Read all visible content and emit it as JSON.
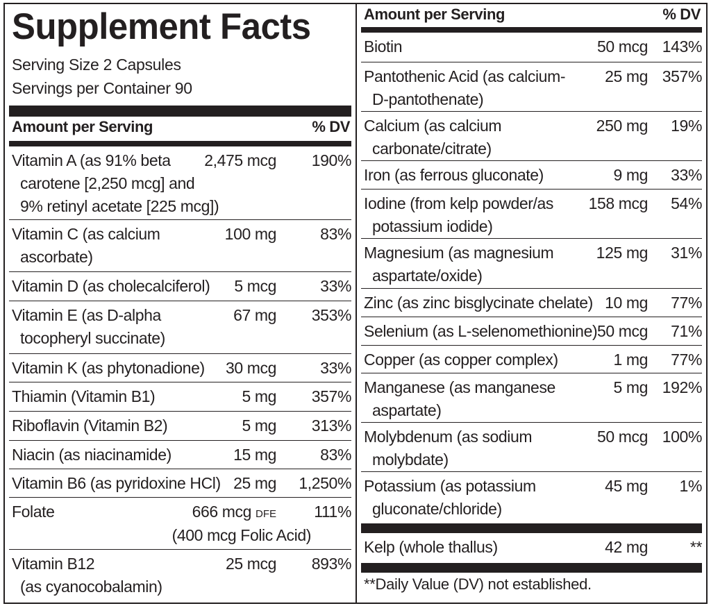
{
  "title": "Supplement Facts",
  "serving_size": "Serving Size 2 Capsules",
  "servings_per_container": "Servings per Container 90",
  "header_amount": "Amount per Serving",
  "header_dv": "% DV",
  "left_rows": [
    {
      "name_lines": [
        "Vitamin A (as 91% beta",
        "carotene [2,250 mcg] and",
        "9% retinyl acetate [225 mcg])"
      ],
      "amount": "2,475 mcg",
      "dv": "190%"
    },
    {
      "name_lines": [
        "Vitamin C (as calcium",
        "ascorbate)"
      ],
      "amount": "100 mg",
      "dv": "83%"
    },
    {
      "name_lines": [
        "Vitamin D (as cholecalciferol)"
      ],
      "amount": "5 mcg",
      "dv": "33%"
    },
    {
      "name_lines": [
        "Vitamin E (as D-alpha",
        "tocopheryl succinate)"
      ],
      "amount": "67 mg",
      "dv": "353%"
    },
    {
      "name_lines": [
        "Vitamin K (as phytonadione)"
      ],
      "amount": "30 mcg",
      "dv": "33%"
    },
    {
      "name_lines": [
        "Thiamin (Vitamin B1)"
      ],
      "amount": "5 mg",
      "dv": "357%"
    },
    {
      "name_lines": [
        "Riboflavin (Vitamin B2)"
      ],
      "amount": "5 mg",
      "dv": "313%"
    },
    {
      "name_lines": [
        "Niacin (as niacinamide)"
      ],
      "amount": "15 mg",
      "dv": "83%"
    },
    {
      "name_lines": [
        "Vitamin B6 (as pyridoxine HCl)"
      ],
      "amount": "25 mg",
      "dv": "1,250%"
    },
    {
      "name_lines": [
        "Folate"
      ],
      "amount": "666 mcg",
      "amount_suffix": "DFE",
      "dv": "111%",
      "sub_line": "(400 mcg Folic Acid)"
    },
    {
      "name_lines": [
        "Vitamin B12",
        "(as cyanocobalamin)"
      ],
      "amount": "25 mcg",
      "dv": "893%"
    }
  ],
  "right_rows": [
    {
      "name_lines": [
        "Biotin"
      ],
      "amount": "50 mcg",
      "dv": "143%"
    },
    {
      "name_lines": [
        "Pantothenic Acid (as calcium-",
        "D-pantothenate)"
      ],
      "amount": "25 mg",
      "dv": "357%"
    },
    {
      "name_lines": [
        "Calcium (as calcium",
        "carbonate/citrate)"
      ],
      "amount": "250 mg",
      "dv": "19%"
    },
    {
      "name_lines": [
        "Iron (as ferrous gluconate)"
      ],
      "amount": "9 mg",
      "dv": "33%"
    },
    {
      "name_lines": [
        "Iodine (from kelp powder/as",
        "potassium iodide)"
      ],
      "amount": "158 mcg",
      "dv": "54%"
    },
    {
      "name_lines": [
        "Magnesium (as magnesium",
        "aspartate/oxide)"
      ],
      "amount": "125 mg",
      "dv": "31%"
    },
    {
      "name_lines": [
        "Zinc (as zinc bisglycinate chelate)"
      ],
      "amount": "10 mg",
      "dv": "77%"
    },
    {
      "name_lines": [
        "Selenium (as L-selenomethionine)"
      ],
      "amount": "50 mcg",
      "dv": "71%"
    },
    {
      "name_lines": [
        "Copper (as copper complex)"
      ],
      "amount": "1 mg",
      "dv": "77%"
    },
    {
      "name_lines": [
        "Manganese (as manganese",
        "aspartate)"
      ],
      "amount": "5 mg",
      "dv": "192%"
    },
    {
      "name_lines": [
        "Molybdenum (as sodium",
        "molybdate)"
      ],
      "amount": "50 mcg",
      "dv": "100%"
    },
    {
      "name_lines": [
        "Potassium (as potassium",
        "gluconate/chloride)"
      ],
      "amount": "45 mg",
      "dv": "1%"
    }
  ],
  "kelp_row": {
    "name_lines": [
      "Kelp (whole thallus)"
    ],
    "amount": "42 mg",
    "dv": "**"
  },
  "footnote": "**Daily Value (DV) not established."
}
